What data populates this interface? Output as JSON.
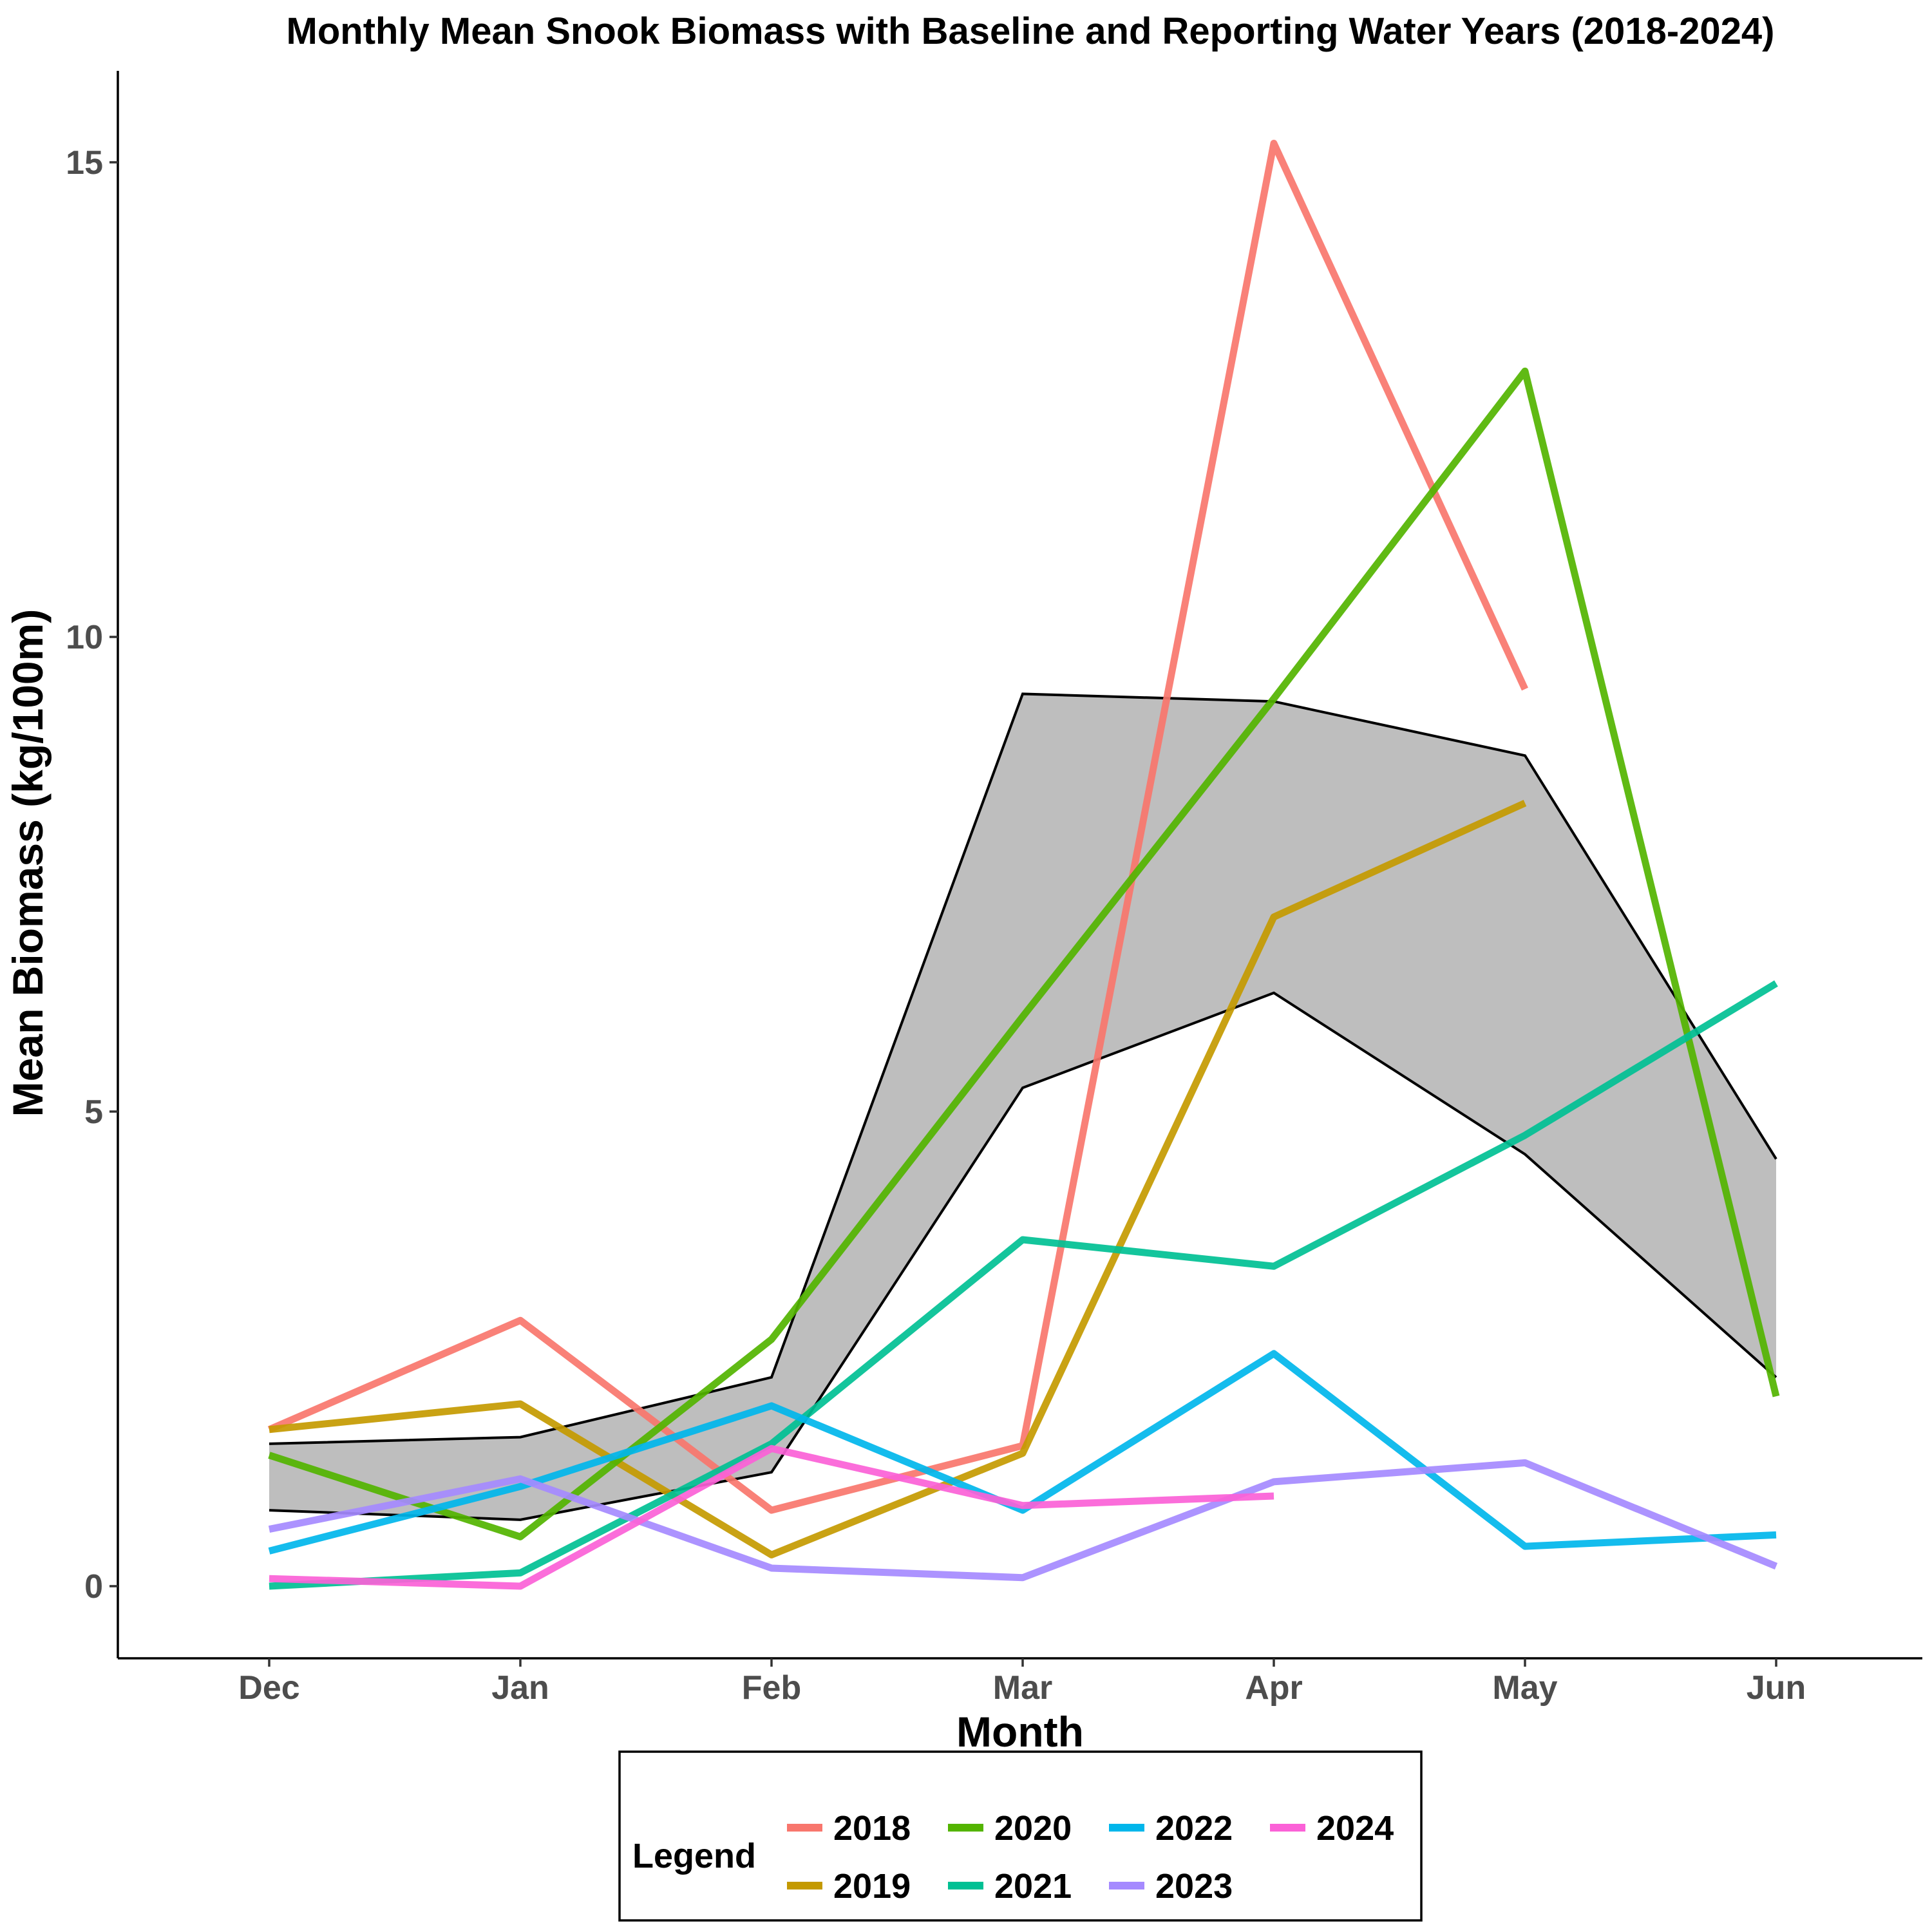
{
  "chart_data": {
    "type": "line",
    "title": "Monthly Mean Snook Biomass with Baseline and Reporting Water Years (2018-2024)",
    "xlabel": "Month",
    "ylabel": "Mean Biomass (kg/100m)",
    "categories": [
      "Dec",
      "Jan",
      "Feb",
      "Mar",
      "Apr",
      "May",
      "Jun"
    ],
    "ylim": [
      -0.75,
      16.0
    ],
    "yticks": [
      0,
      5,
      10,
      15
    ],
    "grid": false,
    "legend": {
      "title": "Legend",
      "position": "bottom"
    },
    "baseline_band": {
      "fill": "#bebebe",
      "lower": [
        0.8,
        0.7,
        1.2,
        5.25,
        6.25,
        4.55,
        2.2
      ],
      "upper": [
        1.5,
        1.57,
        2.2,
        9.4,
        9.32,
        8.75,
        4.5
      ]
    },
    "series": [
      {
        "name": "2018",
        "color": "#F8766D",
        "values": [
          1.65,
          2.8,
          0.8,
          1.48,
          15.2,
          9.45,
          null
        ]
      },
      {
        "name": "2019",
        "color": "#C49A00",
        "values": [
          1.65,
          1.92,
          0.33,
          1.4,
          7.05,
          8.25,
          null
        ]
      },
      {
        "name": "2020",
        "color": "#53B400",
        "values": [
          1.38,
          0.52,
          2.6,
          6.0,
          9.35,
          12.8,
          2.0
        ]
      },
      {
        "name": "2021",
        "color": "#00C094",
        "values": [
          0.0,
          0.14,
          1.5,
          3.65,
          3.37,
          4.75,
          6.35
        ]
      },
      {
        "name": "2022",
        "color": "#00B6EB",
        "values": [
          0.37,
          1.05,
          1.9,
          0.8,
          2.45,
          0.42,
          0.54
        ]
      },
      {
        "name": "2023",
        "color": "#A58AFF",
        "values": [
          0.6,
          1.13,
          0.19,
          0.09,
          1.1,
          1.3,
          0.21
        ]
      },
      {
        "name": "2024",
        "color": "#FB61D7",
        "values": [
          0.08,
          0.0,
          1.45,
          0.85,
          0.95,
          null,
          null
        ]
      }
    ]
  }
}
